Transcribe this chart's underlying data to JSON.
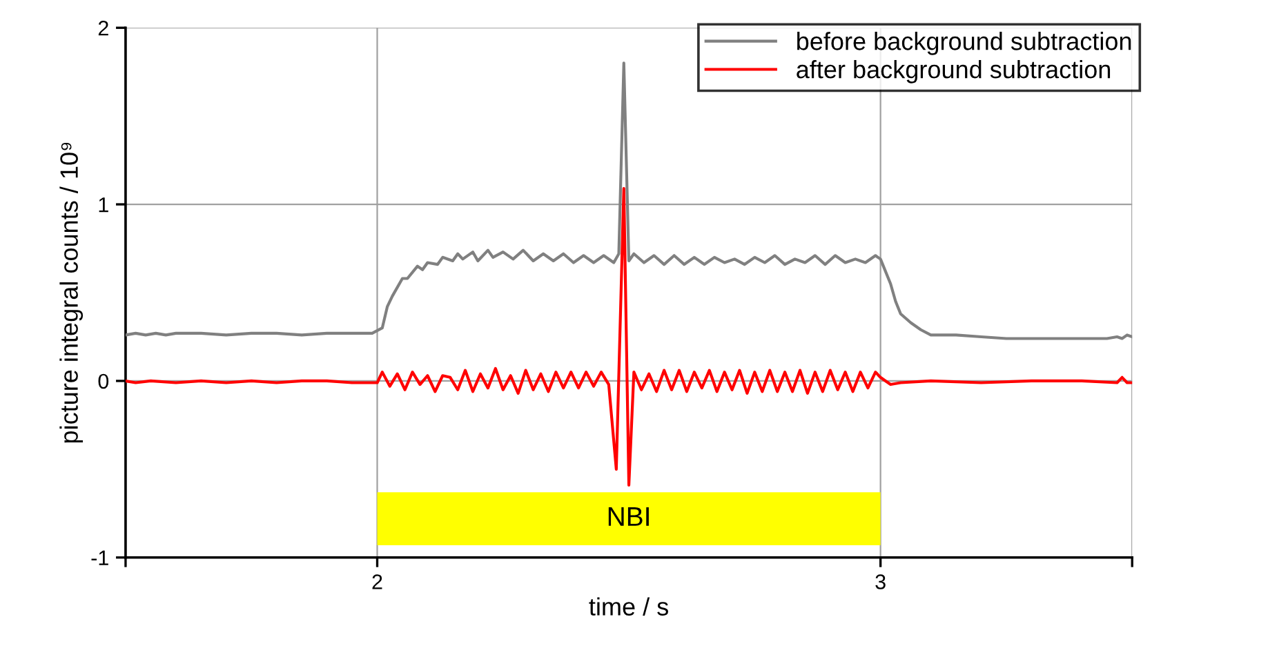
{
  "chart_data": {
    "type": "line",
    "xlabel": "time / s",
    "ylabel": "picture integral counts / 10⁹",
    "xlim": [
      1.5,
      3.5
    ],
    "ylim": [
      -1,
      2
    ],
    "xticks": [
      {
        "value": 1.5,
        "label": null
      },
      2,
      3,
      {
        "value": 3.5,
        "label": null
      }
    ],
    "yticks": [
      -1,
      0,
      1,
      2
    ],
    "grid": true,
    "legend": "top right",
    "line_style": "solid",
    "marker": "none",
    "bands": [
      {
        "axis": "x",
        "from": 2,
        "to": 3,
        "label": "NBI",
        "color": "#ffff00"
      }
    ],
    "series": [
      {
        "name": "before background subtraction",
        "color": "#808080",
        "x": [
          1.5,
          1.52,
          1.54,
          1.56,
          1.58,
          1.6,
          1.65,
          1.7,
          1.75,
          1.8,
          1.85,
          1.9,
          1.95,
          1.99,
          2.01,
          2.02,
          2.03,
          2.05,
          2.06,
          2.08,
          2.09,
          2.1,
          2.12,
          2.13,
          2.15,
          2.16,
          2.17,
          2.19,
          2.2,
          2.22,
          2.23,
          2.25,
          2.27,
          2.29,
          2.31,
          2.33,
          2.35,
          2.37,
          2.39,
          2.41,
          2.43,
          2.45,
          2.47,
          2.48,
          2.49,
          2.5,
          2.51,
          2.53,
          2.55,
          2.57,
          2.59,
          2.61,
          2.63,
          2.65,
          2.67,
          2.69,
          2.71,
          2.73,
          2.75,
          2.77,
          2.79,
          2.81,
          2.83,
          2.85,
          2.87,
          2.89,
          2.91,
          2.93,
          2.95,
          2.97,
          2.99,
          3.0,
          3.02,
          3.03,
          3.04,
          3.06,
          3.08,
          3.1,
          3.15,
          3.2,
          3.25,
          3.3,
          3.4,
          3.45,
          3.47,
          3.48,
          3.49,
          3.5
        ],
        "values": [
          0.26,
          0.27,
          0.26,
          0.27,
          0.26,
          0.27,
          0.27,
          0.26,
          0.27,
          0.27,
          0.26,
          0.27,
          0.27,
          0.27,
          0.3,
          0.42,
          0.48,
          0.58,
          0.58,
          0.65,
          0.63,
          0.67,
          0.66,
          0.7,
          0.68,
          0.72,
          0.69,
          0.73,
          0.68,
          0.74,
          0.7,
          0.73,
          0.69,
          0.74,
          0.68,
          0.72,
          0.68,
          0.72,
          0.67,
          0.71,
          0.67,
          0.71,
          0.67,
          0.72,
          1.8,
          0.68,
          0.72,
          0.67,
          0.71,
          0.66,
          0.71,
          0.66,
          0.7,
          0.66,
          0.7,
          0.67,
          0.69,
          0.66,
          0.7,
          0.67,
          0.71,
          0.66,
          0.69,
          0.67,
          0.71,
          0.66,
          0.71,
          0.67,
          0.69,
          0.67,
          0.71,
          0.69,
          0.55,
          0.45,
          0.38,
          0.33,
          0.29,
          0.26,
          0.26,
          0.25,
          0.24,
          0.24,
          0.24,
          0.24,
          0.25,
          0.24,
          0.26,
          0.25
        ]
      },
      {
        "name": "after background subtraction",
        "color": "#ff0000",
        "x": [
          1.5,
          1.52,
          1.55,
          1.6,
          1.65,
          1.7,
          1.75,
          1.8,
          1.85,
          1.9,
          1.95,
          2.0,
          2.01,
          2.025,
          2.04,
          2.055,
          2.07,
          2.085,
          2.1,
          2.115,
          2.13,
          2.145,
          2.16,
          2.175,
          2.19,
          2.205,
          2.22,
          2.235,
          2.25,
          2.265,
          2.28,
          2.295,
          2.31,
          2.325,
          2.34,
          2.355,
          2.37,
          2.385,
          2.4,
          2.415,
          2.43,
          2.445,
          2.46,
          2.475,
          2.49,
          2.5,
          2.51,
          2.525,
          2.54,
          2.555,
          2.57,
          2.585,
          2.6,
          2.615,
          2.63,
          2.645,
          2.66,
          2.675,
          2.69,
          2.705,
          2.72,
          2.735,
          2.75,
          2.765,
          2.78,
          2.795,
          2.81,
          2.825,
          2.84,
          2.855,
          2.87,
          2.885,
          2.9,
          2.915,
          2.93,
          2.945,
          2.96,
          2.975,
          2.99,
          3.0,
          3.01,
          3.02,
          3.04,
          3.1,
          3.2,
          3.3,
          3.4,
          3.47,
          3.48,
          3.49,
          3.5
        ],
        "values": [
          0.0,
          -0.01,
          0.0,
          -0.01,
          0.0,
          -0.01,
          0.0,
          -0.01,
          0.0,
          0.0,
          -0.01,
          -0.01,
          0.05,
          -0.03,
          0.04,
          -0.05,
          0.05,
          -0.02,
          0.03,
          -0.06,
          0.03,
          0.02,
          -0.05,
          0.06,
          -0.06,
          0.04,
          -0.04,
          0.07,
          -0.05,
          0.03,
          -0.07,
          0.06,
          -0.05,
          0.04,
          -0.06,
          0.05,
          -0.04,
          0.05,
          -0.04,
          0.05,
          -0.03,
          0.05,
          -0.02,
          -0.5,
          1.09,
          -0.59,
          0.05,
          -0.05,
          0.04,
          -0.06,
          0.06,
          -0.05,
          0.06,
          -0.06,
          0.05,
          -0.04,
          0.06,
          -0.06,
          0.05,
          -0.05,
          0.06,
          -0.07,
          0.05,
          -0.06,
          0.06,
          -0.06,
          0.05,
          -0.06,
          0.06,
          -0.07,
          0.05,
          -0.06,
          0.06,
          -0.05,
          0.05,
          -0.06,
          0.05,
          -0.04,
          0.05,
          0.02,
          0.0,
          -0.02,
          -0.01,
          0.0,
          -0.01,
          0.0,
          0.0,
          -0.01,
          0.02,
          -0.01,
          -0.01
        ]
      }
    ]
  }
}
